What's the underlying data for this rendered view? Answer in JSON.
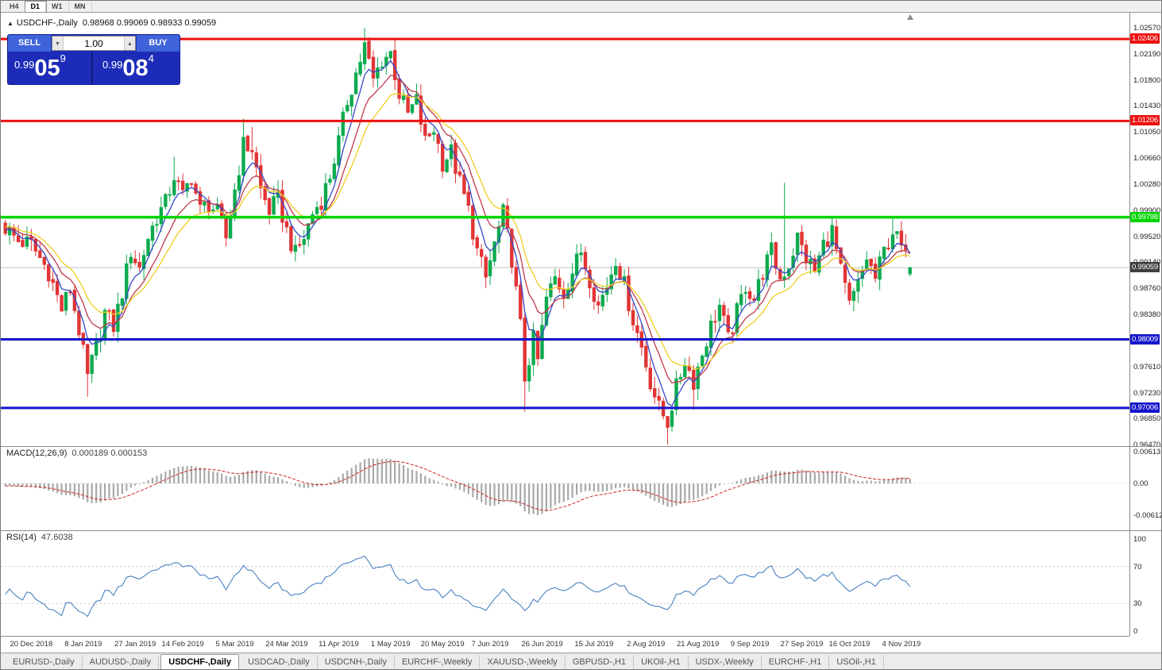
{
  "timeframe_toolbar": {
    "buttons": [
      "H4",
      "D1",
      "W1",
      "MN"
    ],
    "active": "D1"
  },
  "chart": {
    "collapse_icon": "▲",
    "title_symbol": "USDCHF-,Daily",
    "title_ohlc": "0.98968 0.99069 0.98933 0.99059"
  },
  "trade_panel": {
    "sell_label": "SELL",
    "buy_label": "BUY",
    "volume": "1.00",
    "down_icon": "▼",
    "up_icon": "▲",
    "sell_price": {
      "base": "0.99",
      "big": "05",
      "pip": "9"
    },
    "buy_price": {
      "base": "0.99",
      "big": "08",
      "pip": "4"
    }
  },
  "chart_data": {
    "type": "candlestick",
    "symbol": "USDCHF",
    "period": "Daily",
    "price_axis": {
      "top": 1.0257,
      "bottom": 0.9647,
      "ticks": [
        "1.02570",
        "1.02190",
        "1.01800",
        "1.01430",
        "1.01050",
        "1.00660",
        "1.00280",
        "0.99900",
        "0.99520",
        "0.99140",
        "0.98760",
        "0.98380",
        "0.97610",
        "0.97230",
        "0.96850",
        "0.96470"
      ]
    },
    "x_axis": {
      "labels": [
        {
          "t": "20 Dec 2018",
          "i": 6
        },
        {
          "t": "8 Jan 2019",
          "i": 18
        },
        {
          "t": "27 Jan 2019",
          "i": 30
        },
        {
          "t": "14 Feb 2019",
          "i": 41
        },
        {
          "t": "5 Mar 2019",
          "i": 53
        },
        {
          "t": "24 Mar 2019",
          "i": 65
        },
        {
          "t": "11 Apr 2019",
          "i": 77
        },
        {
          "t": "1 May 2019",
          "i": 89
        },
        {
          "t": "20 May 2019",
          "i": 101
        },
        {
          "t": "7 Jun 2019",
          "i": 112
        },
        {
          "t": "26 Jun 2019",
          "i": 124
        },
        {
          "t": "15 Jul 2019",
          "i": 136
        },
        {
          "t": "2 Aug 2019",
          "i": 148
        },
        {
          "t": "21 Aug 2019",
          "i": 160
        },
        {
          "t": "9 Sep 2019",
          "i": 172
        },
        {
          "t": "27 Sep 2019",
          "i": 184
        },
        {
          "t": "16 Oct 2019",
          "i": 195
        },
        {
          "t": "4 Nov 2019",
          "i": 207
        }
      ]
    },
    "candles": {
      "count": 210,
      "up_color": "#0caa4e",
      "down_color": "#e23434",
      "close_anchors": [
        [
          0,
          0.9965
        ],
        [
          3,
          0.9945
        ],
        [
          6,
          0.994
        ],
        [
          10,
          0.99
        ],
        [
          13,
          0.9845
        ],
        [
          15,
          0.9875
        ],
        [
          17,
          0.9815
        ],
        [
          19,
          0.9745
        ],
        [
          21,
          0.979
        ],
        [
          23,
          0.984
        ],
        [
          25,
          0.982
        ],
        [
          27,
          0.987
        ],
        [
          29,
          0.993
        ],
        [
          31,
          0.9905
        ],
        [
          33,
          0.995
        ],
        [
          35,
          0.998
        ],
        [
          37,
          1.0
        ],
        [
          39,
          1.004
        ],
        [
          41,
          1.001
        ],
        [
          43,
          1.004
        ],
        [
          45,
          0.999
        ],
        [
          47,
          1.0
        ],
        [
          49,
          0.9985
        ],
        [
          51,
          0.995
        ],
        [
          53,
          1.002
        ],
        [
          55,
          1.0085
        ],
        [
          57,
          1.008
        ],
        [
          59,
          1.002
        ],
        [
          61,
          0.999
        ],
        [
          63,
          1.0005
        ],
        [
          65,
          0.996
        ],
        [
          67,
          0.9925
        ],
        [
          69,
          0.995
        ],
        [
          71,
          0.9985
        ],
        [
          73,
          1.0005
        ],
        [
          75,
          1.004
        ],
        [
          77,
          1.009
        ],
        [
          79,
          1.015
        ],
        [
          81,
          1.019
        ],
        [
          83,
          1.023
        ],
        [
          85,
          1.018
        ],
        [
          87,
          1.021
        ],
        [
          89,
          1.022
        ],
        [
          91,
          1.016
        ],
        [
          93,
          1.013
        ],
        [
          95,
          1.015
        ],
        [
          97,
          1.009
        ],
        [
          99,
          1.011
        ],
        [
          101,
          1.006
        ],
        [
          103,
          1.0075
        ],
        [
          105,
          1.003
        ],
        [
          107,
          0.999
        ],
        [
          109,
          0.993
        ],
        [
          111,
          0.989
        ],
        [
          113,
          0.994
        ],
        [
          115,
          0.9985
        ],
        [
          117,
          0.992
        ],
        [
          119,
          0.982
        ],
        [
          120,
          0.9745
        ],
        [
          122,
          0.98
        ],
        [
          123,
          0.977
        ],
        [
          125,
          0.986
        ],
        [
          127,
          0.989
        ],
        [
          129,
          0.987
        ],
        [
          131,
          0.99
        ],
        [
          133,
          0.993
        ],
        [
          135,
          0.989
        ],
        [
          137,
          0.985
        ],
        [
          139,
          0.988
        ],
        [
          141,
          0.992
        ],
        [
          143,
          0.988
        ],
        [
          145,
          0.983
        ],
        [
          147,
          0.979
        ],
        [
          149,
          0.974
        ],
        [
          151,
          0.97
        ],
        [
          153,
          0.968
        ],
        [
          155,
          0.973
        ],
        [
          157,
          0.977
        ],
        [
          159,
          0.974
        ],
        [
          161,
          0.978
        ],
        [
          163,
          0.982
        ],
        [
          165,
          0.985
        ],
        [
          167,
          0.98
        ],
        [
          169,
          0.984
        ],
        [
          171,
          0.988
        ],
        [
          173,
          0.986
        ],
        [
          175,
          0.99
        ],
        [
          177,
          0.993
        ],
        [
          179,
          0.989
        ],
        [
          181,
          0.991
        ],
        [
          183,
          0.995
        ],
        [
          185,
          0.992
        ],
        [
          187,
          0.99
        ],
        [
          189,
          0.994
        ],
        [
          191,
          0.996
        ],
        [
          193,
          0.99
        ],
        [
          195,
          0.985
        ],
        [
          197,
          0.988
        ],
        [
          199,
          0.992
        ],
        [
          201,
          0.989
        ],
        [
          203,
          0.993
        ],
        [
          205,
          0.996
        ],
        [
          207,
          0.9935
        ],
        [
          209,
          0.99059
        ]
      ],
      "wick_overrides": [
        {
          "index": 19,
          "low": 0.9717
        },
        {
          "index": 39,
          "high": 1.0068
        },
        {
          "index": 55,
          "high": 1.0124
        },
        {
          "index": 57,
          "high": 1.0112
        },
        {
          "index": 83,
          "high": 1.0257
        },
        {
          "index": 115,
          "high": 1.0001
        },
        {
          "index": 120,
          "low": 0.9695
        },
        {
          "index": 153,
          "low": 0.9647
        },
        {
          "index": 159,
          "low": 0.9698
        },
        {
          "index": 180,
          "high": 1.003
        },
        {
          "index": 205,
          "high": 0.9978
        }
      ],
      "last_candle": {
        "open": 0.98968,
        "high": 0.99069,
        "low": 0.98933,
        "close": 0.99059
      }
    },
    "moving_averages": [
      {
        "period": 5,
        "color": "#3448c8"
      },
      {
        "period": 10,
        "color": "#c03a4a"
      },
      {
        "period": 16,
        "color": "#eecf22"
      }
    ],
    "hlines": [
      {
        "value": 1.02406,
        "label": "1.02406",
        "color": "#ee0f0f",
        "width": 3
      },
      {
        "value": 1.01206,
        "label": "1.01206",
        "color": "#ee0f0f",
        "width": 3
      },
      {
        "value": 0.99798,
        "label": "0.99798",
        "color": "#00d500",
        "width": 3.5
      },
      {
        "value": 0.98009,
        "label": "0.98009",
        "color": "#1414cc",
        "width": 3
      },
      {
        "value": 0.97006,
        "label": "0.97006",
        "color": "#1414cc",
        "width": 3
      }
    ],
    "bid": {
      "value": 0.99059,
      "label": "0.99059"
    },
    "macd": {
      "label": "MACD(12,26,9)",
      "values": "0.000189 0.000153",
      "fast": 12,
      "slow": 26,
      "signal": 9,
      "axis_ticks": [
        "0.00613",
        "0.00",
        "-0.00612"
      ],
      "histogram_color": "#a8a8a8",
      "signal_color": "#cc2222"
    },
    "rsi": {
      "label": "RSI(14)",
      "value": "47.6038",
      "period": 14,
      "axis_ticks": [
        "100",
        "70",
        "30",
        "0"
      ],
      "levels": [
        70,
        30
      ],
      "line_color": "#4a80c0"
    }
  },
  "bottom_tabs": {
    "items": [
      "EURUSD-,Daily",
      "AUDUSD-,Daily",
      "USDCHF-,Daily",
      "USDCAD-,Daily",
      "USDCNH-,Daily",
      "EURCHF-,Weekly",
      "XAUUSD-,Weekly",
      "GBPUSD-,H1",
      "UKOil-,H1",
      "USDX-,Weekly",
      "EURCHF-,H1",
      "USOil-,H1"
    ],
    "active": "USDCHF-,Daily"
  }
}
